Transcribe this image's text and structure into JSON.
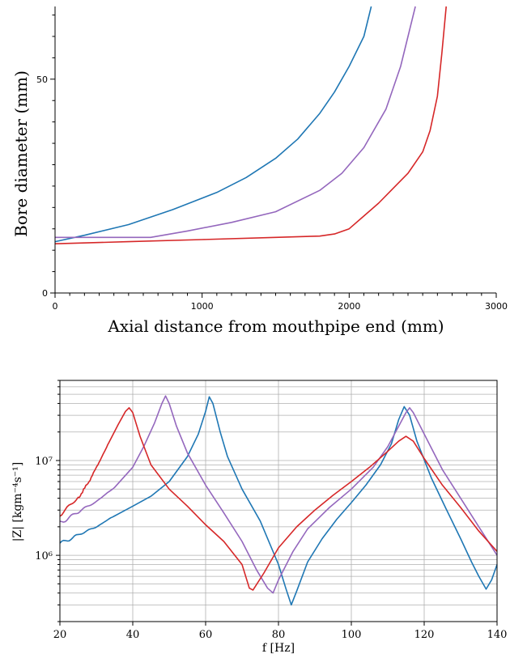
{
  "chart_data": [
    {
      "type": "line",
      "xlabel": "Axial distance from mouthpipe end (mm)",
      "ylabel": "Bore diameter (mm)",
      "xlim": [
        0,
        3000
      ],
      "ylim": [
        0,
        67
      ],
      "xticks": [
        "0",
        "1000",
        "2000",
        "3000"
      ],
      "yticks": [
        "0",
        "50"
      ],
      "grid": false,
      "series": [
        {
          "color": "#1f77b4",
          "x": [
            0,
            200,
            500,
            800,
            1100,
            1300,
            1500,
            1650,
            1800,
            1900,
            2000,
            2100,
            2150
          ],
          "y": [
            12,
            13.5,
            16,
            19.5,
            23.5,
            27,
            31.5,
            36,
            42,
            47,
            53,
            60,
            67
          ]
        },
        {
          "color": "#9467bd",
          "x": [
            0,
            650,
            900,
            1200,
            1500,
            1800,
            1950,
            2100,
            2250,
            2350,
            2400,
            2450
          ],
          "y": [
            13,
            13,
            14.5,
            16.5,
            19,
            24,
            28,
            34,
            43,
            53,
            60,
            67
          ]
        },
        {
          "color": "#d62728",
          "x": [
            0,
            500,
            1000,
            1500,
            1800,
            1900,
            2000,
            2100,
            2200,
            2300,
            2400,
            2500,
            2550,
            2600,
            2630,
            2660
          ],
          "y": [
            11.5,
            12,
            12.5,
            13,
            13.3,
            13.8,
            15,
            18,
            21,
            24.5,
            28,
            33,
            38,
            46,
            56,
            67
          ]
        }
      ]
    },
    {
      "type": "line",
      "xlabel": "f [Hz]",
      "ylabel": "|Z| [kgm⁻⁴s⁻¹]",
      "xlim": [
        20,
        140
      ],
      "ylim": [
        200000,
        70000000
      ],
      "yscale": "log",
      "xticks": [
        "20",
        "40",
        "60",
        "80",
        "100",
        "120",
        "140"
      ],
      "yticks": [
        "10⁶",
        "10⁷"
      ],
      "grid": true,
      "series": [
        {
          "color": "#1f77b4",
          "x": [
            20,
            25,
            30,
            35,
            40,
            45,
            50,
            55,
            58,
            60,
            61,
            62,
            64,
            66,
            70,
            75,
            80,
            82,
            83.5,
            85,
            88,
            92,
            96,
            100,
            104,
            108,
            111,
            113,
            114.5,
            116,
            118,
            122,
            126,
            130,
            133,
            135,
            137,
            138.5,
            140
          ],
          "y": [
            1400000,
            1600000,
            2000000,
            2600000,
            3300000,
            4200000,
            6000000,
            11000000,
            19000000,
            33000000,
            47000000,
            40000000,
            20000000,
            11000000,
            5000000,
            2300000,
            800000,
            450000,
            300000,
            420000,
            850000,
            1500000,
            2400000,
            3600000,
            5500000,
            9000000,
            15000000,
            27000000,
            37000000,
            30000000,
            16000000,
            6500000,
            3100000,
            1500000,
            850000,
            600000,
            440000,
            550000,
            800000
          ]
        },
        {
          "color": "#9467bd",
          "x": [
            20,
            25,
            30,
            35,
            40,
            43,
            46,
            48,
            49,
            50,
            52,
            55,
            60,
            65,
            70,
            74,
            77,
            78.5,
            80,
            84,
            88,
            94,
            100,
            106,
            110,
            113,
            115,
            116,
            117,
            120,
            125,
            130,
            135,
            140
          ],
          "y": [
            2300000,
            2800000,
            3700000,
            5200000,
            8500000,
            14000000,
            25000000,
            40000000,
            48000000,
            40000000,
            23000000,
            12000000,
            5500000,
            2800000,
            1400000,
            700000,
            450000,
            400000,
            550000,
            1100000,
            1900000,
            3200000,
            5000000,
            8500000,
            14000000,
            23000000,
            32000000,
            36000000,
            32000000,
            19000000,
            8000000,
            4000000,
            2000000,
            1000000
          ]
        },
        {
          "color": "#d62728",
          "x": [
            20,
            25,
            28,
            31,
            34,
            36,
            38,
            39,
            40,
            42,
            45,
            50,
            55,
            60,
            65,
            70,
            72,
            73,
            76,
            80,
            85,
            90,
            95,
            100,
            105,
            110,
            113,
            115,
            117,
            120,
            125,
            130,
            135,
            140
          ],
          "y": [
            2800000,
            4000000,
            6000000,
            10000000,
            17000000,
            24000000,
            33000000,
            36000000,
            32000000,
            18000000,
            9000000,
            5000000,
            3300000,
            2100000,
            1400000,
            800000,
            450000,
            430000,
            650000,
            1200000,
            2000000,
            3000000,
            4300000,
            6000000,
            8500000,
            12500000,
            16000000,
            18000000,
            16000000,
            10500000,
            5500000,
            3200000,
            1800000,
            1100000
          ]
        }
      ]
    }
  ]
}
